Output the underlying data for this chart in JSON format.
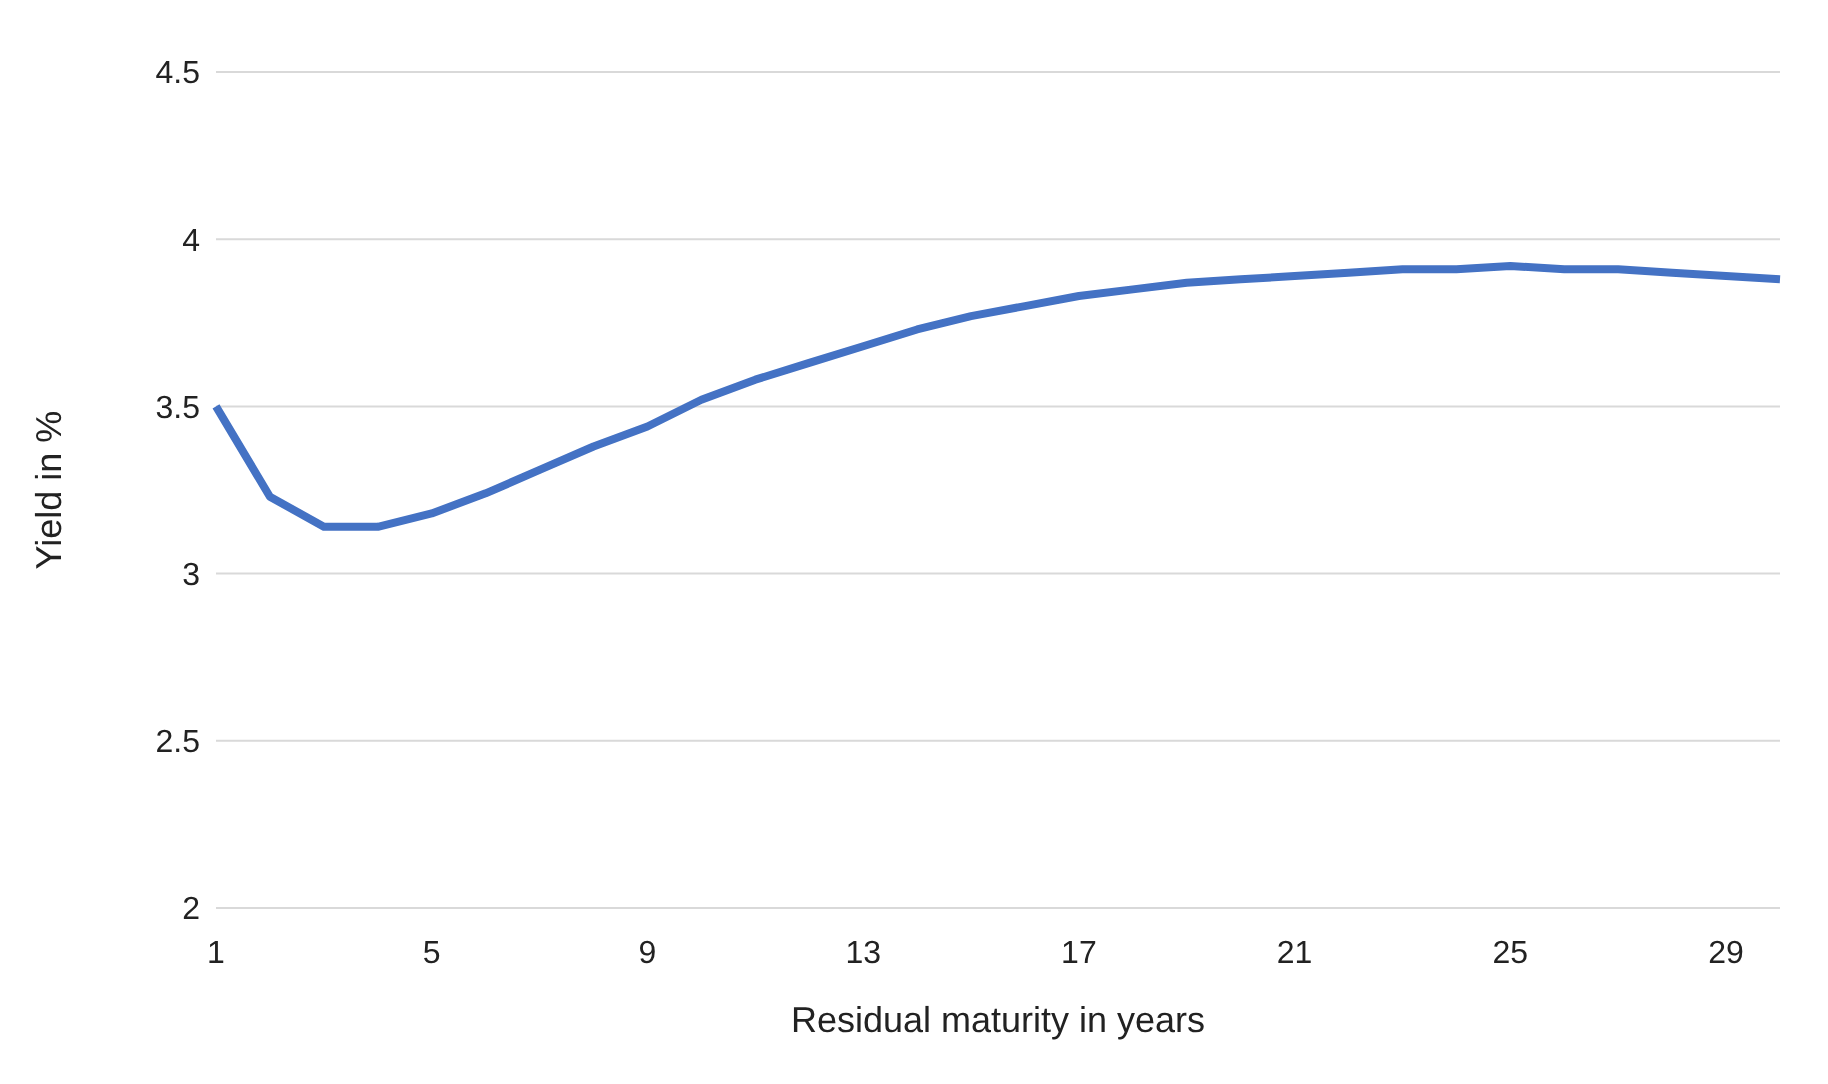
{
  "chart_data": {
    "type": "line",
    "xlabel": "Residual maturity in years",
    "ylabel": "Yield in %",
    "categories": [
      "1",
      null,
      null,
      null,
      "5",
      null,
      null,
      null,
      "9",
      null,
      null,
      null,
      "13",
      null,
      null,
      null,
      "17",
      null,
      null,
      null,
      "21",
      null,
      null,
      null,
      "25",
      null,
      null,
      null,
      "29",
      null
    ],
    "series": [
      {
        "color": "#4472c4",
        "values": [
          3.5,
          3.23,
          3.14,
          3.14,
          3.18,
          3.24,
          3.31,
          3.38,
          3.44,
          3.52,
          3.58,
          3.63,
          3.68,
          3.73,
          3.77,
          3.8,
          3.83,
          3.85,
          3.87,
          3.88,
          3.89,
          3.9,
          3.91,
          3.91,
          3.92,
          3.91,
          3.91,
          3.9,
          3.89,
          3.88
        ]
      }
    ],
    "ylim": [
      2,
      4.5
    ],
    "yticks": [
      2,
      2.5,
      3,
      3.5,
      4,
      4.5
    ],
    "grid": "y",
    "legend": false,
    "marker": "none",
    "line_style": "solid"
  }
}
